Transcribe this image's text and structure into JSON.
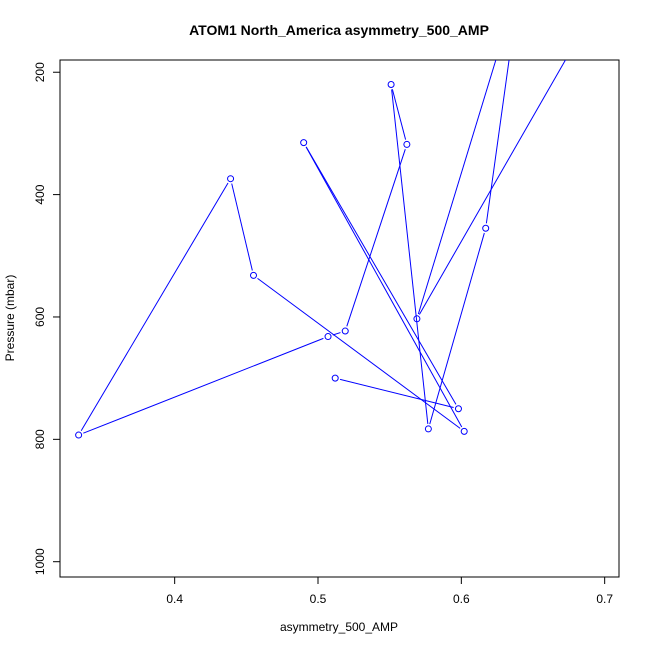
{
  "chart_data": {
    "type": "line",
    "title": "ATOM1 North_America asymmetry_500_AMP",
    "xlabel": "asymmetry_500_AMP",
    "ylabel": "Pressure (mbar)",
    "xlim": [
      0.32,
      0.71
    ],
    "ylim": [
      1025,
      180
    ],
    "y_reversed": true,
    "grid": false,
    "x_ticks": [
      "0.4",
      "0.5",
      "0.6",
      "0.7"
    ],
    "x_tick_values": [
      0.4,
      0.5,
      0.6,
      0.7
    ],
    "y_ticks": [
      "200",
      "400",
      "600",
      "800",
      "1000"
    ],
    "y_tick_values": [
      200,
      400,
      600,
      800,
      1000
    ],
    "series": [
      {
        "color": "#0000ff",
        "marker": "open-circle",
        "points": [
          {
            "x": 0.512,
            "y": 700
          },
          {
            "x": 0.598,
            "y": 750
          },
          {
            "x": 0.49,
            "y": 315
          },
          {
            "x": 0.602,
            "y": 787
          },
          {
            "x": 0.455,
            "y": 532
          },
          {
            "x": 0.439,
            "y": 374
          },
          {
            "x": 0.333,
            "y": 793
          },
          {
            "x": 0.507,
            "y": 632
          },
          {
            "x": 0.519,
            "y": 623
          },
          {
            "x": 0.562,
            "y": 318
          },
          {
            "x": 0.551,
            "y": 220
          },
          {
            "x": 0.577,
            "y": 783
          },
          {
            "x": 0.617,
            "y": 455
          },
          {
            "x": 0.641,
            "y": 50
          },
          {
            "x": 0.569,
            "y": 603
          },
          {
            "x": 0.68,
            "y": 150
          }
        ],
        "extra_offscreen_point": {
          "x": 0.634,
          "y": 100
        }
      }
    ]
  }
}
